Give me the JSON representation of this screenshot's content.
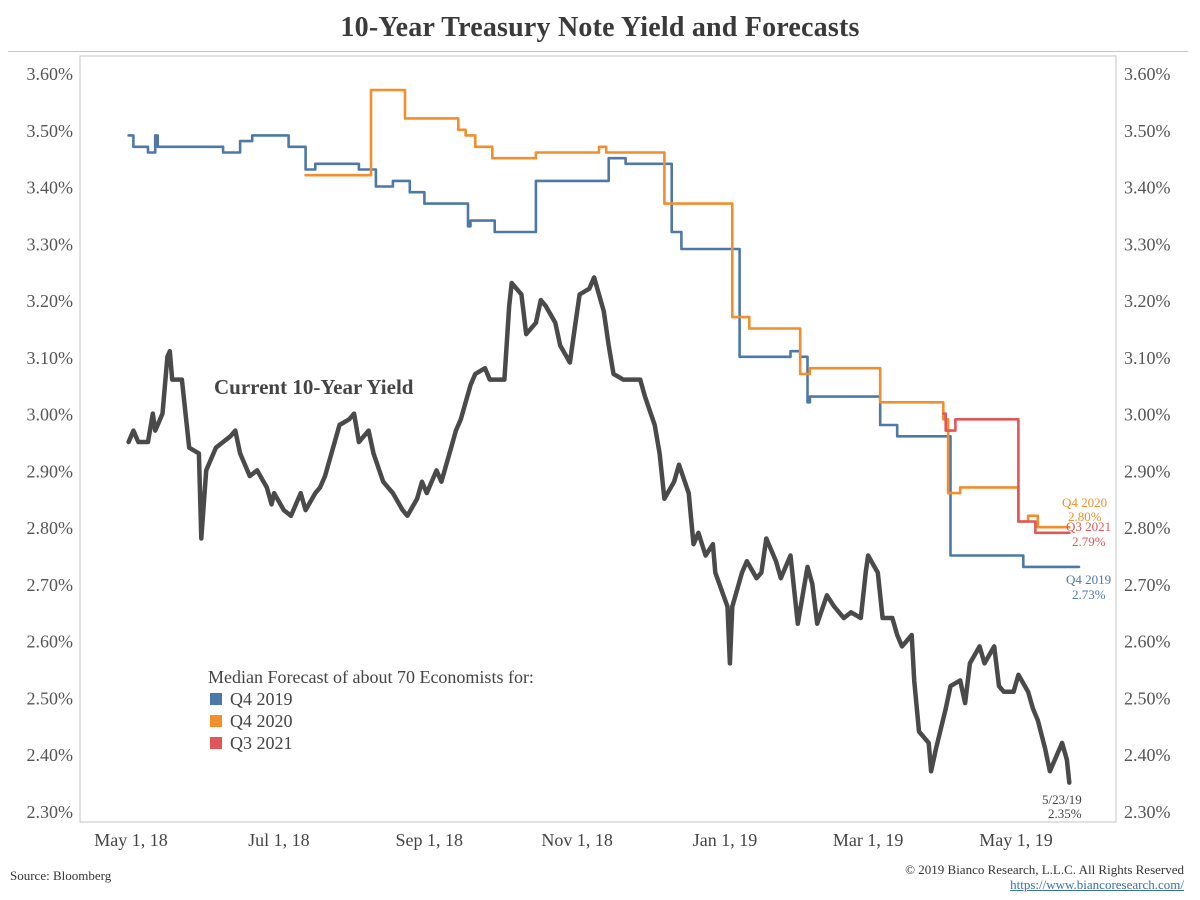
{
  "title": "10-Year Treasury Note Yield and Forecasts",
  "footer": {
    "source": "Source: Bloomberg",
    "copyright": "© 2019 Bianco Research, L.L.C. All Rights Reserved",
    "link": "https://www.biancoresearch.com/"
  },
  "legend": {
    "heading": "Median Forecast of about 70 Economists for:",
    "items": [
      {
        "label": "Q4 2019",
        "color": "#4e79a7"
      },
      {
        "label": "Q4 2020",
        "color": "#f28e2b"
      },
      {
        "label": "Q3 2021",
        "color": "#e15759"
      }
    ]
  },
  "annotations": {
    "current_yield_label": "Current 10-Year Yield",
    "q4_2020_name": "Q4 2020",
    "q4_2020_value": "2.80%",
    "q3_2021_name": "Q3 2021",
    "q3_2021_value": "2.79%",
    "q4_2019_name": "Q4 2019",
    "q4_2019_value": "2.73%",
    "last_date": "5/23/19",
    "last_value": "2.35%"
  },
  "chart_data": {
    "type": "line",
    "title": "10-Year Treasury Note Yield and Forecasts",
    "x_ticks": [
      "May 1, 18",
      "Jul 1, 18",
      "Sep 1, 18",
      "Nov 1, 18",
      "Jan 1, 19",
      "Mar 1, 19",
      "May 1, 19"
    ],
    "y_ticks": [
      "3.60%",
      "3.50%",
      "3.40%",
      "3.30%",
      "3.20%",
      "3.10%",
      "3.00%",
      "2.90%",
      "2.80%",
      "2.70%",
      "2.60%",
      "2.50%",
      "2.40%",
      "2.30%"
    ],
    "ylim": [
      2.3,
      3.6
    ],
    "y_unit": "%",
    "grid": false,
    "colors": {
      "current": "#4a4a4a",
      "q4_2019": "#4e79a7",
      "q4_2020": "#f28e2b",
      "q3_2021": "#e15759"
    },
    "series": [
      {
        "name": "Current 10-Year Yield",
        "key": "current",
        "points": [
          [
            "2018-04-30",
            2.95
          ],
          [
            "2018-05-02",
            2.97
          ],
          [
            "2018-05-04",
            2.95
          ],
          [
            "2018-05-08",
            2.95
          ],
          [
            "2018-05-10",
            3.0
          ],
          [
            "2018-05-11",
            2.97
          ],
          [
            "2018-05-14",
            3.0
          ],
          [
            "2018-05-16",
            3.1
          ],
          [
            "2018-05-17",
            3.11
          ],
          [
            "2018-05-18",
            3.06
          ],
          [
            "2018-05-22",
            3.06
          ],
          [
            "2018-05-25",
            2.94
          ],
          [
            "2018-05-29",
            2.93
          ],
          [
            "2018-05-30",
            2.78
          ],
          [
            "2018-06-01",
            2.9
          ],
          [
            "2018-06-05",
            2.94
          ],
          [
            "2018-06-08",
            2.95
          ],
          [
            "2018-06-11",
            2.96
          ],
          [
            "2018-06-13",
            2.97
          ],
          [
            "2018-06-15",
            2.93
          ],
          [
            "2018-06-19",
            2.89
          ],
          [
            "2018-06-22",
            2.9
          ],
          [
            "2018-06-26",
            2.87
          ],
          [
            "2018-06-28",
            2.84
          ],
          [
            "2018-06-29",
            2.86
          ],
          [
            "2018-07-03",
            2.83
          ],
          [
            "2018-07-06",
            2.82
          ],
          [
            "2018-07-10",
            2.86
          ],
          [
            "2018-07-12",
            2.83
          ],
          [
            "2018-07-16",
            2.86
          ],
          [
            "2018-07-18",
            2.87
          ],
          [
            "2018-07-20",
            2.89
          ],
          [
            "2018-07-24",
            2.95
          ],
          [
            "2018-07-26",
            2.98
          ],
          [
            "2018-07-30",
            2.99
          ],
          [
            "2018-08-01",
            3.0
          ],
          [
            "2018-08-03",
            2.95
          ],
          [
            "2018-08-07",
            2.97
          ],
          [
            "2018-08-09",
            2.93
          ],
          [
            "2018-08-13",
            2.88
          ],
          [
            "2018-08-15",
            2.87
          ],
          [
            "2018-08-17",
            2.86
          ],
          [
            "2018-08-21",
            2.83
          ],
          [
            "2018-08-23",
            2.82
          ],
          [
            "2018-08-27",
            2.85
          ],
          [
            "2018-08-29",
            2.88
          ],
          [
            "2018-08-31",
            2.86
          ],
          [
            "2018-09-04",
            2.9
          ],
          [
            "2018-09-06",
            2.88
          ],
          [
            "2018-09-10",
            2.94
          ],
          [
            "2018-09-12",
            2.97
          ],
          [
            "2018-09-14",
            2.99
          ],
          [
            "2018-09-18",
            3.05
          ],
          [
            "2018-09-20",
            3.07
          ],
          [
            "2018-09-24",
            3.08
          ],
          [
            "2018-09-26",
            3.06
          ],
          [
            "2018-09-28",
            3.06
          ],
          [
            "2018-10-02",
            3.06
          ],
          [
            "2018-10-04",
            3.19
          ],
          [
            "2018-10-05",
            3.23
          ],
          [
            "2018-10-09",
            3.21
          ],
          [
            "2018-10-11",
            3.14
          ],
          [
            "2018-10-15",
            3.16
          ],
          [
            "2018-10-17",
            3.2
          ],
          [
            "2018-10-19",
            3.19
          ],
          [
            "2018-10-23",
            3.16
          ],
          [
            "2018-10-25",
            3.12
          ],
          [
            "2018-10-29",
            3.09
          ],
          [
            "2018-10-31",
            3.15
          ],
          [
            "2018-11-02",
            3.21
          ],
          [
            "2018-11-06",
            3.22
          ],
          [
            "2018-11-08",
            3.24
          ],
          [
            "2018-11-12",
            3.18
          ],
          [
            "2018-11-14",
            3.12
          ],
          [
            "2018-11-16",
            3.07
          ],
          [
            "2018-11-20",
            3.06
          ],
          [
            "2018-11-23",
            3.06
          ],
          [
            "2018-11-27",
            3.06
          ],
          [
            "2018-11-29",
            3.03
          ],
          [
            "2018-12-03",
            2.98
          ],
          [
            "2018-12-05",
            2.93
          ],
          [
            "2018-12-07",
            2.85
          ],
          [
            "2018-12-11",
            2.88
          ],
          [
            "2018-12-13",
            2.91
          ],
          [
            "2018-12-17",
            2.86
          ],
          [
            "2018-12-19",
            2.77
          ],
          [
            "2018-12-21",
            2.79
          ],
          [
            "2018-12-24",
            2.75
          ],
          [
            "2018-12-27",
            2.77
          ],
          [
            "2018-12-28",
            2.72
          ],
          [
            "2019-01-02",
            2.66
          ],
          [
            "2019-01-03",
            2.56
          ],
          [
            "2019-01-04",
            2.66
          ],
          [
            "2019-01-08",
            2.72
          ],
          [
            "2019-01-10",
            2.74
          ],
          [
            "2019-01-14",
            2.71
          ],
          [
            "2019-01-16",
            2.72
          ],
          [
            "2019-01-18",
            2.78
          ],
          [
            "2019-01-22",
            2.74
          ],
          [
            "2019-01-24",
            2.71
          ],
          [
            "2019-01-28",
            2.75
          ],
          [
            "2019-01-31",
            2.63
          ],
          [
            "2019-02-04",
            2.73
          ],
          [
            "2019-02-06",
            2.7
          ],
          [
            "2019-02-08",
            2.63
          ],
          [
            "2019-02-12",
            2.68
          ],
          [
            "2019-02-15",
            2.66
          ],
          [
            "2019-02-19",
            2.64
          ],
          [
            "2019-02-22",
            2.65
          ],
          [
            "2019-02-26",
            2.64
          ],
          [
            "2019-02-28",
            2.72
          ],
          [
            "2019-03-01",
            2.75
          ],
          [
            "2019-03-05",
            2.72
          ],
          [
            "2019-03-07",
            2.64
          ],
          [
            "2019-03-11",
            2.64
          ],
          [
            "2019-03-13",
            2.61
          ],
          [
            "2019-03-15",
            2.59
          ],
          [
            "2019-03-19",
            2.61
          ],
          [
            "2019-03-20",
            2.53
          ],
          [
            "2019-03-22",
            2.44
          ],
          [
            "2019-03-26",
            2.42
          ],
          [
            "2019-03-27",
            2.37
          ],
          [
            "2019-03-29",
            2.41
          ],
          [
            "2019-04-02",
            2.48
          ],
          [
            "2019-04-04",
            2.52
          ],
          [
            "2019-04-08",
            2.53
          ],
          [
            "2019-04-10",
            2.49
          ],
          [
            "2019-04-12",
            2.56
          ],
          [
            "2019-04-16",
            2.59
          ],
          [
            "2019-04-18",
            2.56
          ],
          [
            "2019-04-22",
            2.59
          ],
          [
            "2019-04-24",
            2.52
          ],
          [
            "2019-04-26",
            2.51
          ],
          [
            "2019-04-30",
            2.51
          ],
          [
            "2019-05-02",
            2.54
          ],
          [
            "2019-05-06",
            2.51
          ],
          [
            "2019-05-08",
            2.48
          ],
          [
            "2019-05-10",
            2.46
          ],
          [
            "2019-05-13",
            2.41
          ],
          [
            "2019-05-15",
            2.37
          ],
          [
            "2019-05-17",
            2.39
          ],
          [
            "2019-05-20",
            2.42
          ],
          [
            "2019-05-22",
            2.39
          ],
          [
            "2019-05-23",
            2.35
          ]
        ]
      },
      {
        "name": "Q4 2019",
        "key": "q4_2019",
        "points": [
          [
            "2018-04-30",
            3.49
          ],
          [
            "2018-05-02",
            3.47
          ],
          [
            "2018-05-08",
            3.46
          ],
          [
            "2018-05-11",
            3.49
          ],
          [
            "2018-05-12",
            3.47
          ],
          [
            "2018-06-08",
            3.46
          ],
          [
            "2018-06-15",
            3.48
          ],
          [
            "2018-06-20",
            3.49
          ],
          [
            "2018-07-05",
            3.47
          ],
          [
            "2018-07-12",
            3.43
          ],
          [
            "2018-07-16",
            3.44
          ],
          [
            "2018-08-03",
            3.43
          ],
          [
            "2018-08-10",
            3.4
          ],
          [
            "2018-08-17",
            3.41
          ],
          [
            "2018-08-24",
            3.39
          ],
          [
            "2018-08-30",
            3.37
          ],
          [
            "2018-09-17",
            3.33
          ],
          [
            "2018-09-18",
            3.34
          ],
          [
            "2018-09-28",
            3.32
          ],
          [
            "2018-10-15",
            3.41
          ],
          [
            "2018-11-14",
            3.45
          ],
          [
            "2018-11-21",
            3.44
          ],
          [
            "2018-12-05",
            3.44
          ],
          [
            "2018-12-10",
            3.32
          ],
          [
            "2018-12-14",
            3.29
          ],
          [
            "2019-01-04",
            3.29
          ],
          [
            "2019-01-07",
            3.1
          ],
          [
            "2019-01-28",
            3.11
          ],
          [
            "2019-02-01",
            3.1
          ],
          [
            "2019-02-04",
            3.02
          ],
          [
            "2019-02-05",
            3.03
          ],
          [
            "2019-03-05",
            3.03
          ],
          [
            "2019-03-06",
            2.98
          ],
          [
            "2019-03-13",
            2.96
          ],
          [
            "2019-04-01",
            2.96
          ],
          [
            "2019-04-04",
            2.75
          ],
          [
            "2019-05-04",
            2.73
          ],
          [
            "2019-05-27",
            2.73
          ]
        ]
      },
      {
        "name": "Q4 2020",
        "key": "q4_2020",
        "points": [
          [
            "2018-07-12",
            3.42
          ],
          [
            "2018-08-07",
            3.42
          ],
          [
            "2018-08-08",
            3.57
          ],
          [
            "2018-08-16",
            3.57
          ],
          [
            "2018-08-22",
            3.52
          ],
          [
            "2018-09-12",
            3.52
          ],
          [
            "2018-09-13",
            3.5
          ],
          [
            "2018-09-16",
            3.49
          ],
          [
            "2018-09-19",
            3.49
          ],
          [
            "2018-09-20",
            3.47
          ],
          [
            "2018-09-27",
            3.45
          ],
          [
            "2018-10-14",
            3.45
          ],
          [
            "2018-10-15",
            3.46
          ],
          [
            "2018-11-08",
            3.46
          ],
          [
            "2018-11-10",
            3.47
          ],
          [
            "2018-11-13",
            3.46
          ],
          [
            "2018-12-06",
            3.46
          ],
          [
            "2018-12-07",
            3.37
          ],
          [
            "2018-12-29",
            3.37
          ],
          [
            "2019-01-04",
            3.17
          ],
          [
            "2019-01-11",
            3.15
          ],
          [
            "2019-01-25",
            3.15
          ],
          [
            "2019-02-01",
            3.07
          ],
          [
            "2019-02-05",
            3.08
          ],
          [
            "2019-03-01",
            3.08
          ],
          [
            "2019-03-06",
            3.02
          ],
          [
            "2019-03-31",
            3.02
          ],
          [
            "2019-04-01",
            2.99
          ],
          [
            "2019-04-03",
            2.86
          ],
          [
            "2019-04-08",
            2.87
          ],
          [
            "2019-04-29",
            2.87
          ],
          [
            "2019-05-02",
            2.81
          ],
          [
            "2019-05-06",
            2.82
          ],
          [
            "2019-05-10",
            2.8
          ],
          [
            "2019-05-23",
            2.8
          ]
        ]
      },
      {
        "name": "Q3 2021",
        "key": "q3_2021",
        "points": [
          [
            "2019-04-01",
            3.0
          ],
          [
            "2019-04-02",
            2.97
          ],
          [
            "2019-04-04",
            2.97
          ],
          [
            "2019-04-06",
            2.99
          ],
          [
            "2019-04-29",
            2.99
          ],
          [
            "2019-05-02",
            2.81
          ],
          [
            "2019-05-06",
            2.81
          ],
          [
            "2019-05-09",
            2.79
          ],
          [
            "2019-05-23",
            2.79
          ]
        ]
      }
    ]
  }
}
